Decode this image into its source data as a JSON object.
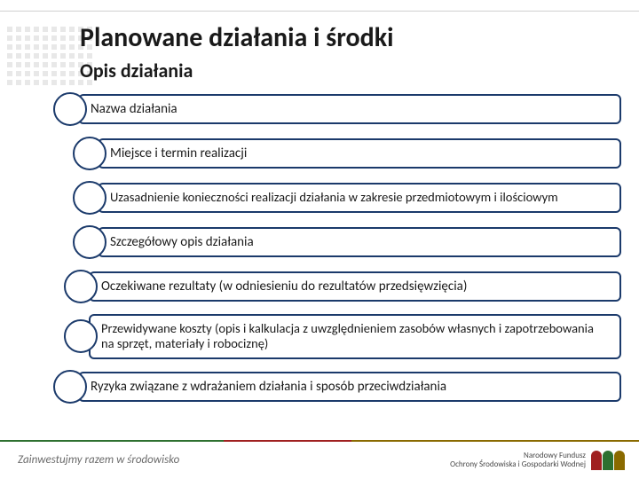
{
  "title": "Planowane działania i środki",
  "subtitle": "Opis działania",
  "items": [
    {
      "text": "Nazwa działania",
      "indent": 0
    },
    {
      "text": "Miejsce i termin realizacji",
      "indent": 2
    },
    {
      "text": "Uzasadnienie konieczności realizacji działania w zakresie przedmiotowym i ilościowym",
      "indent": 2,
      "two": true
    },
    {
      "text": "Szczegółowy opis działania",
      "indent": 2
    },
    {
      "text": "Oczekiwane rezultaty (w odniesieniu do rezultatów przedsięwzięcia)",
      "indent": 1
    },
    {
      "text": "Przewidywane koszty (opis i kalkulacja z uwzględnieniem zasobów własnych i zapotrzebowania na sprzęt, materiały i robociznę)",
      "indent": 1,
      "two": true
    },
    {
      "text": "Ryzyka związane z wdrażaniem działania i sposób przeciwdziałania",
      "indent": 0
    }
  ],
  "footer": "Zainwestujmy razem w środowisko",
  "logo_text1": "Narodowy Fundusz",
  "logo_text2": "Ochrony Środowiska i Gospodarki Wodnej",
  "colors": {
    "border": "#1b3a6b",
    "text": "#1a1a1a",
    "footer": "#6b6b6b"
  }
}
